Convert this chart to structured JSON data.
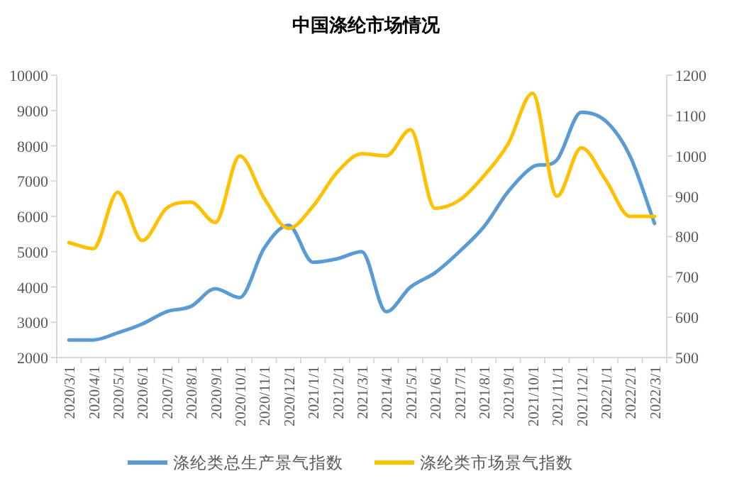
{
  "chart_data": {
    "type": "line",
    "title": "中国涤纶市场情况",
    "categories": [
      "2020/3/1",
      "2020/4/1",
      "2020/5/1",
      "2020/6/1",
      "2020/7/1",
      "2020/8/1",
      "2020/9/1",
      "2020/10/1",
      "2020/11/1",
      "2020/12/1",
      "2021/1/1",
      "2021/2/1",
      "2021/3/1",
      "2021/4/1",
      "2021/5/1",
      "2021/6/1",
      "2021/7/1",
      "2021/8/1",
      "2021/9/1",
      "2021/10/1",
      "2021/11/1",
      "2021/12/1",
      "2022/1/1",
      "2022/2/1",
      "2022/3/1"
    ],
    "series": [
      {
        "name": "涤纶类总生产景气指数",
        "color": "#5b9bd5",
        "values": [
          2500,
          2500,
          2700,
          2950,
          3300,
          3450,
          3950,
          3700,
          5100,
          5750,
          4700,
          4800,
          5000,
          3300,
          4000,
          4400,
          5000,
          5700,
          6700,
          7400,
          7600,
          8950,
          8700,
          7700,
          5800
        ]
      },
      {
        "name": "涤纶类市场景气指数",
        "color": "#ffc000",
        "axis": "y2",
        "values": [
          785,
          770,
          910,
          790,
          870,
          885,
          835,
          1000,
          895,
          820,
          875,
          960,
          1005,
          1000,
          1065,
          870,
          890,
          950,
          1030,
          1155,
          900,
          1020,
          940,
          850,
          850
        ]
      }
    ],
    "ylim": [
      2000,
      10000
    ],
    "yticks": [
      2000,
      3000,
      4000,
      5000,
      6000,
      7000,
      8000,
      9000,
      10000
    ],
    "y2lim": [
      500,
      1200
    ],
    "y2ticks": [
      500,
      600,
      700,
      800,
      900,
      1000,
      1100,
      1200
    ],
    "grid": false,
    "legend": "bottom",
    "marker": "none",
    "line_style": "solid"
  }
}
